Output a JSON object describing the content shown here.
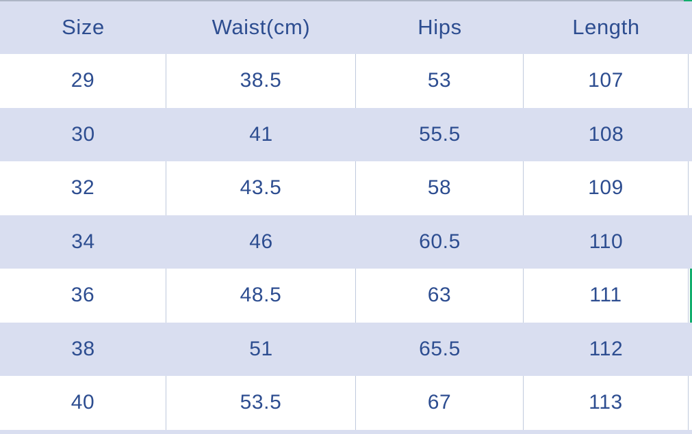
{
  "colors": {
    "row_stripe": "#d9def0",
    "text": "#2d4d90",
    "divider": "#bfc9dc",
    "top_border": "#adb5c5",
    "selection_green": "#12ad6d"
  },
  "table": {
    "columns": [
      "Size",
      "Waist(cm)",
      "Hips",
      "Length"
    ],
    "rows": [
      [
        "29",
        "38.5",
        "53",
        "107"
      ],
      [
        "30",
        "41",
        "55.5",
        "108"
      ],
      [
        "32",
        "43.5",
        "58",
        "109"
      ],
      [
        "34",
        "46",
        "60.5",
        "110"
      ],
      [
        "36",
        "48.5",
        "63",
        "111"
      ],
      [
        "38",
        "51",
        "65.5",
        "112"
      ],
      [
        "40",
        "53.5",
        "67",
        "113"
      ]
    ]
  },
  "chart_data": {
    "type": "table",
    "title": "",
    "columns": [
      "Size",
      "Waist(cm)",
      "Hips",
      "Length"
    ],
    "rows": [
      [
        29,
        38.5,
        53,
        107
      ],
      [
        30,
        41,
        55.5,
        108
      ],
      [
        32,
        43.5,
        58,
        109
      ],
      [
        34,
        46,
        60.5,
        110
      ],
      [
        36,
        48.5,
        63,
        111
      ],
      [
        38,
        51,
        65.5,
        112
      ],
      [
        40,
        53.5,
        67,
        113
      ]
    ],
    "layout_hints": {
      "header_background": "#d9def0",
      "zebra_striping": "white/lavender alternating",
      "text_color": "#2d4d90",
      "highlight": "green marker on right edge of row Size 36"
    }
  }
}
